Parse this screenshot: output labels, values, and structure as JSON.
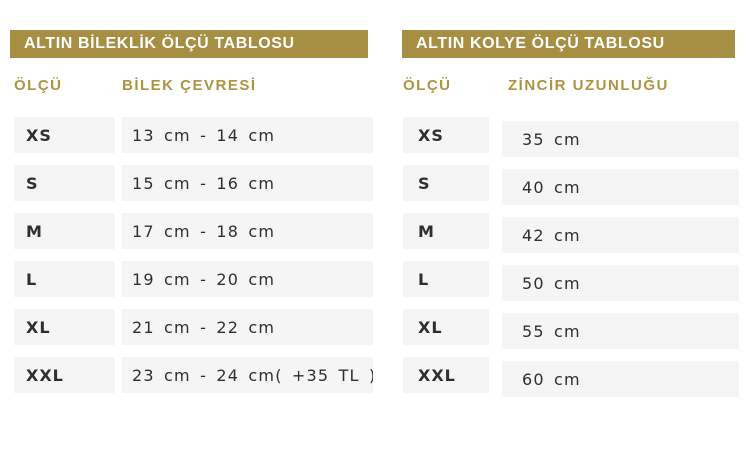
{
  "colors": {
    "gold": "#A68E43",
    "gold_heading": "#AF9440",
    "title_text": "#FFFFFF",
    "row_background": "#F5F5F5",
    "row_text": "#2F2F2F",
    "page_background": "#FFFFFF"
  },
  "tables": [
    {
      "title": "ALTIN BİLEKLİK ÖLÇÜ TABLOSU",
      "columns": [
        "ÖLÇÜ",
        "BİLEK ÇEVRESİ"
      ],
      "rows": [
        {
          "size": "XS",
          "value": "13 cm - 14 cm"
        },
        {
          "size": "S",
          "value": "15 cm - 16 cm"
        },
        {
          "size": "M",
          "value": "17 cm - 18 cm"
        },
        {
          "size": "L",
          "value": "19 cm - 20 cm"
        },
        {
          "size": "XL",
          "value": "21 cm - 22 cm"
        },
        {
          "size": "XXL",
          "value": "23 cm - 24 cm( +35 TL )"
        }
      ]
    },
    {
      "title": "ALTIN KOLYE ÖLÇÜ TABLOSU",
      "columns": [
        "ÖLÇÜ",
        "ZİNCİR UZUNLUĞU"
      ],
      "rows": [
        {
          "size": "XS",
          "value": "35 cm"
        },
        {
          "size": "S",
          "value": "40 cm"
        },
        {
          "size": "M",
          "value": "42 cm"
        },
        {
          "size": "L",
          "value": "50 cm"
        },
        {
          "size": "XL",
          "value": "55 cm"
        },
        {
          "size": "XXL",
          "value": "60 cm"
        }
      ]
    }
  ]
}
